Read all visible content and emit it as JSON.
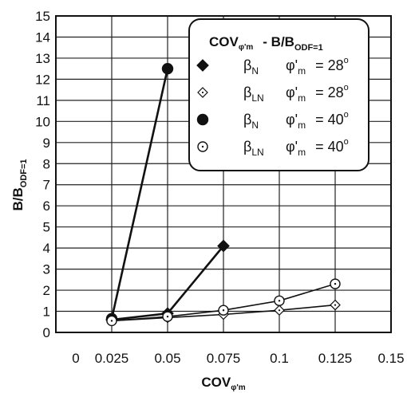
{
  "chart_data": {
    "type": "line",
    "xlabel": "COV",
    "xlabel_sub": "φ'm",
    "ylabel": "B/B",
    "ylabel_sub": "ODF=1",
    "xlim": [
      0,
      0.15
    ],
    "ylim": [
      0,
      15
    ],
    "x_ticks": [
      0,
      0.025,
      0.05,
      0.075,
      0.1,
      0.125,
      0.15
    ],
    "x_tick_labels": [
      "0",
      "0.025",
      "0.05",
      "0.075",
      "0.1",
      "0.125",
      "0.15"
    ],
    "y_ticks": [
      0,
      1,
      2,
      3,
      4,
      5,
      6,
      7,
      8,
      9,
      10,
      11,
      12,
      13,
      14,
      15
    ],
    "y_tick_labels": [
      "0",
      "1",
      "2",
      "3",
      "4",
      "5",
      "6",
      "7",
      "8",
      "9",
      "10",
      "11",
      "12",
      "13",
      "14",
      "15"
    ],
    "grid": true,
    "legend": {
      "placement": "top-right",
      "title_part1": "COV",
      "title_sub": "φ'm",
      "title_part2": "- B/B",
      "title_sub2": "ODF=1",
      "entries": [
        {
          "beta": "β",
          "beta_sub": "N",
          "phi": "φ'",
          "phi_sub": "m",
          "eq": "= 28",
          "deg": "o",
          "marker": "diamond-filled"
        },
        {
          "beta": "β",
          "beta_sub": "LN",
          "phi": "φ'",
          "phi_sub": "m",
          "eq": "= 28",
          "deg": "o",
          "marker": "diamond-open"
        },
        {
          "beta": "β",
          "beta_sub": "N",
          "phi": "φ'",
          "phi_sub": "m",
          "eq": "= 40",
          "deg": "o",
          "marker": "circle-filled"
        },
        {
          "beta": "β",
          "beta_sub": "LN",
          "phi": "φ'",
          "phi_sub": "m",
          "eq": "= 40",
          "deg": "o",
          "marker": "circle-open"
        }
      ]
    },
    "series": [
      {
        "marker": "diamond-filled",
        "x": [
          0.025,
          0.05,
          0.075
        ],
        "y": [
          0.6,
          0.9,
          4.1
        ]
      },
      {
        "marker": "diamond-open",
        "x": [
          0.025,
          0.05,
          0.075,
          0.1,
          0.125
        ],
        "y": [
          0.55,
          0.7,
          0.85,
          1.05,
          1.3
        ]
      },
      {
        "marker": "circle-filled",
        "x": [
          0.025,
          0.05
        ],
        "y": [
          0.65,
          12.5
        ]
      },
      {
        "marker": "circle-open",
        "x": [
          0.025,
          0.05,
          0.075,
          0.1,
          0.125
        ],
        "y": [
          0.55,
          0.75,
          1.05,
          1.5,
          2.3
        ]
      }
    ],
    "colors": {
      "line": "#111111",
      "grid": "#222222",
      "background": "#ffffff"
    }
  }
}
